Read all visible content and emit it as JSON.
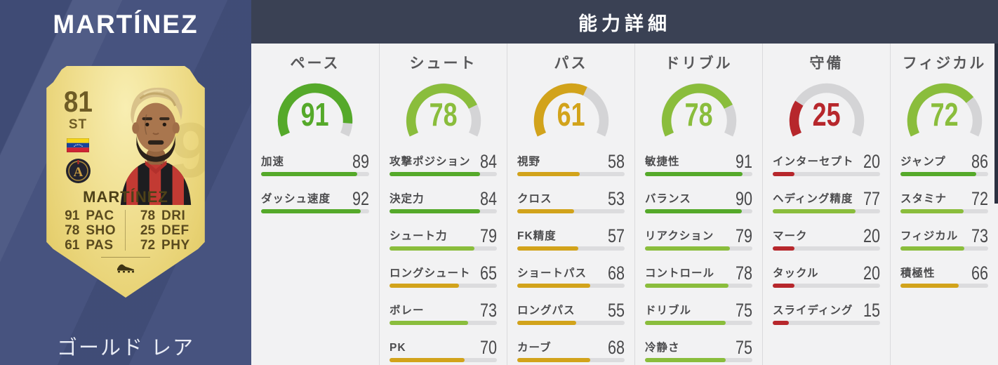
{
  "player": {
    "display_name": "MARTÍNEZ",
    "card_tier_label": "ゴールド レア",
    "card": {
      "rating": "81",
      "position": "ST",
      "name": "MARTÍNEZ",
      "nation_flag": "venezuela-flag",
      "club_badge": "atlanta-united-badge",
      "watermark": "19",
      "quick_stats_left": [
        {
          "value": "91",
          "label": "PAC"
        },
        {
          "value": "78",
          "label": "SHO"
        },
        {
          "value": "61",
          "label": "PAS"
        }
      ],
      "quick_stats_right": [
        {
          "value": "78",
          "label": "DRI"
        },
        {
          "value": "25",
          "label": "DEF"
        },
        {
          "value": "72",
          "label": "PHY"
        }
      ]
    }
  },
  "details": {
    "title": "能力詳細",
    "categories": [
      {
        "name": "ペース",
        "overall": 91,
        "color": "green",
        "stats": [
          {
            "label": "加速",
            "value": 89,
            "color": "green"
          },
          {
            "label": "ダッシュ速度",
            "value": 92,
            "color": "green"
          }
        ]
      },
      {
        "name": "シュート",
        "overall": 78,
        "color": "lime",
        "stats": [
          {
            "label": "攻撃ポジション",
            "value": 84,
            "color": "green"
          },
          {
            "label": "決定力",
            "value": 84,
            "color": "green"
          },
          {
            "label": "シュート力",
            "value": 79,
            "color": "lime"
          },
          {
            "label": "ロングシュート",
            "value": 65,
            "color": "gold"
          },
          {
            "label": "ボレー",
            "value": 73,
            "color": "lime"
          },
          {
            "label": "PK",
            "value": 70,
            "color": "gold"
          }
        ]
      },
      {
        "name": "パス",
        "overall": 61,
        "color": "gold",
        "stats": [
          {
            "label": "視野",
            "value": 58,
            "color": "gold"
          },
          {
            "label": "クロス",
            "value": 53,
            "color": "gold"
          },
          {
            "label": "FK精度",
            "value": 57,
            "color": "gold"
          },
          {
            "label": "ショートパス",
            "value": 68,
            "color": "gold"
          },
          {
            "label": "ロングパス",
            "value": 55,
            "color": "gold"
          },
          {
            "label": "カーブ",
            "value": 68,
            "color": "gold"
          }
        ]
      },
      {
        "name": "ドリブル",
        "overall": 78,
        "color": "lime",
        "stats": [
          {
            "label": "敏捷性",
            "value": 91,
            "color": "green"
          },
          {
            "label": "バランス",
            "value": 90,
            "color": "green"
          },
          {
            "label": "リアクション",
            "value": 79,
            "color": "lime"
          },
          {
            "label": "コントロール",
            "value": 78,
            "color": "lime"
          },
          {
            "label": "ドリブル",
            "value": 75,
            "color": "lime"
          },
          {
            "label": "冷静さ",
            "value": 75,
            "color": "lime"
          }
        ]
      },
      {
        "name": "守備",
        "overall": 25,
        "color": "red",
        "stats": [
          {
            "label": "インターセプト",
            "value": 20,
            "color": "red"
          },
          {
            "label": "ヘディング精度",
            "value": 77,
            "color": "lime"
          },
          {
            "label": "マーク",
            "value": 20,
            "color": "red"
          },
          {
            "label": "タックル",
            "value": 20,
            "color": "red"
          },
          {
            "label": "スライディング",
            "value": 15,
            "color": "red"
          }
        ]
      },
      {
        "name": "フィジカル",
        "overall": 72,
        "color": "lime",
        "stats": [
          {
            "label": "ジャンプ",
            "value": 86,
            "color": "green"
          },
          {
            "label": "スタミナ",
            "value": 72,
            "color": "lime"
          },
          {
            "label": "フィジカル",
            "value": 73,
            "color": "lime"
          },
          {
            "label": "積極性",
            "value": 66,
            "color": "gold"
          }
        ]
      }
    ]
  },
  "palette": {
    "green": "#55a92a",
    "lime": "#8abd3c",
    "gold": "#d2a31b",
    "red": "#b7272c",
    "track": "#dcdcde",
    "header_bg": "#3a4154",
    "left_panel_bg": "#47537f",
    "card_gold": "#ecd883"
  }
}
